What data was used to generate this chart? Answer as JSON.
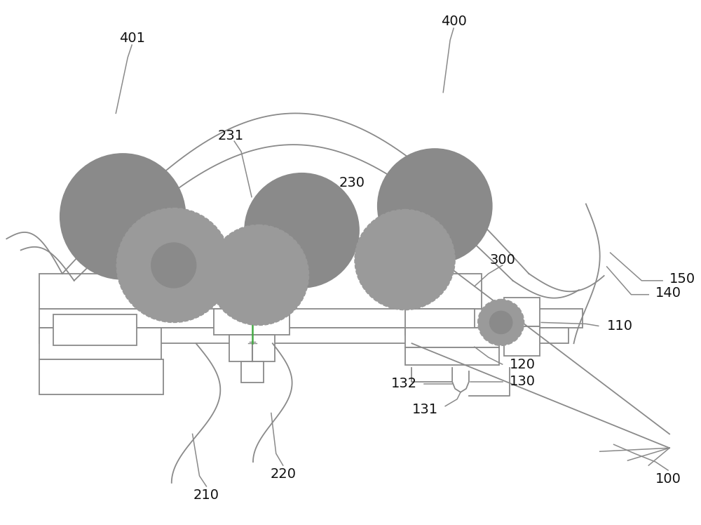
{
  "bg_color": "#ffffff",
  "line_color": "#8a8a8a",
  "dashed_color": "#9a9a9a",
  "green_color": "#44aa44",
  "label_color": "#111111",
  "fig_width": 10.0,
  "fig_height": 7.48,
  "dpi": 100
}
